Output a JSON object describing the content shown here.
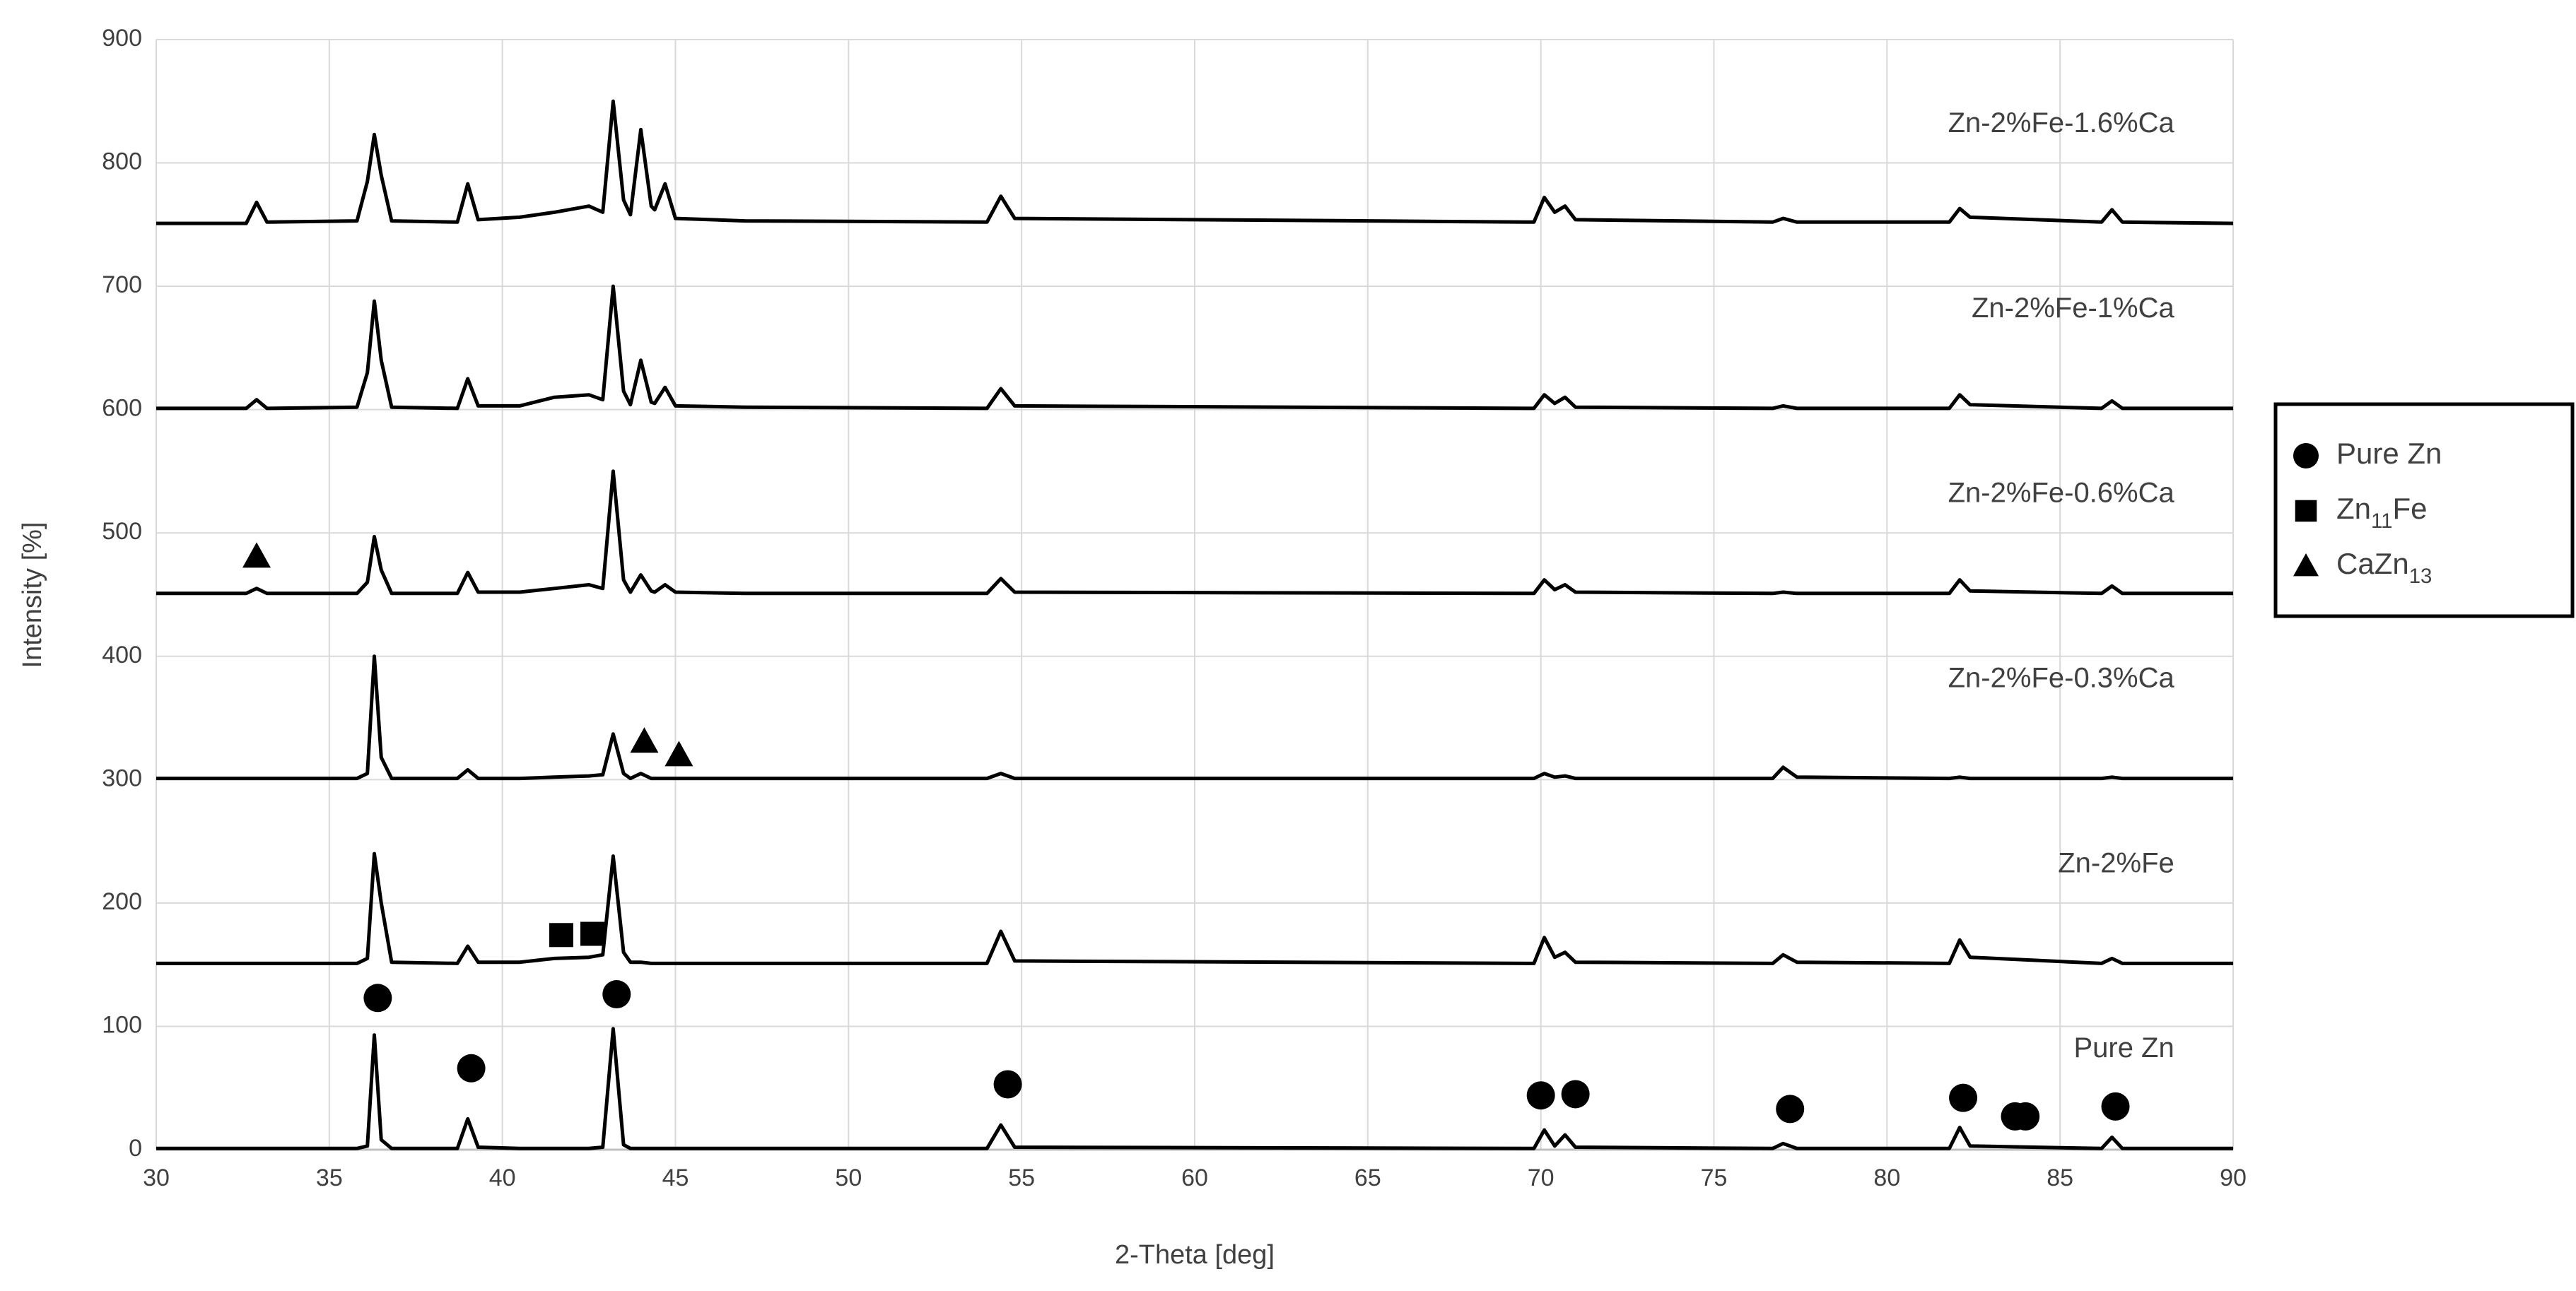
{
  "chart_data": {
    "type": "line",
    "x_label": "2-Theta [deg]",
    "y_label": "Intensity [%]",
    "xlim": [
      30,
      90
    ],
    "xticks": [
      30,
      35,
      40,
      45,
      50,
      55,
      60,
      65,
      70,
      75,
      80,
      85,
      90
    ],
    "ylim": [
      0,
      900
    ],
    "yticks": [
      0,
      100,
      200,
      300,
      400,
      500,
      600,
      700,
      800,
      900
    ],
    "grid": true,
    "x": [
      30,
      32.6,
      32.9,
      33.2,
      35.8,
      36.1,
      36.3,
      36.5,
      36.8,
      38.7,
      39.0,
      39.3,
      40.5,
      41.5,
      42.5,
      42.9,
      43.2,
      43.5,
      43.7,
      44.0,
      44.3,
      44.4,
      44.7,
      45.0,
      47,
      54.0,
      54.4,
      54.8,
      69.8,
      70.1,
      70.4,
      70.7,
      71.0,
      76.7,
      77.0,
      77.4,
      81.8,
      82.1,
      82.4,
      86.2,
      86.5,
      86.8,
      90
    ],
    "series": [
      {
        "name": "Pure Zn",
        "color": "#000000",
        "values": [
          1,
          1,
          1,
          1,
          1,
          3,
          93,
          8,
          1,
          1,
          25,
          2,
          1,
          1,
          1,
          2,
          98,
          4,
          1,
          1,
          1,
          1,
          1,
          1,
          1,
          1,
          20,
          2,
          1,
          16,
          3,
          12,
          2,
          1,
          5,
          1,
          1,
          18,
          3,
          1,
          10,
          1,
          1
        ]
      },
      {
        "name": "Zn-2%Fe",
        "color": "#000000",
        "values": [
          151,
          151,
          151,
          151,
          151,
          155,
          240,
          200,
          152,
          151,
          165,
          152,
          152,
          155,
          156,
          158,
          238,
          160,
          152,
          152,
          151,
          151,
          151,
          151,
          151,
          151,
          177,
          153,
          151,
          172,
          156,
          160,
          152,
          151,
          158,
          152,
          151,
          170,
          156,
          151,
          155,
          151,
          151
        ]
      },
      {
        "name": "Zn-2%Fe-0.3%Ca",
        "color": "#000000",
        "values": [
          301,
          301,
          301,
          301,
          301,
          305,
          400,
          318,
          301,
          301,
          308,
          301,
          301,
          302,
          303,
          304,
          337,
          305,
          301,
          305,
          301,
          301,
          301,
          301,
          301,
          301,
          305,
          301,
          301,
          305,
          302,
          303,
          301,
          301,
          310,
          302,
          301,
          302,
          301,
          301,
          302,
          301,
          301
        ]
      },
      {
        "name": "Zn-2%Fe-0.6%Ca",
        "color": "#000000",
        "values": [
          451,
          451,
          455,
          451,
          451,
          460,
          497,
          470,
          451,
          451,
          468,
          452,
          452,
          455,
          458,
          455,
          550,
          462,
          452,
          466,
          453,
          452,
          458,
          452,
          451,
          451,
          463,
          452,
          451,
          462,
          454,
          458,
          452,
          451,
          452,
          451,
          451,
          462,
          453,
          451,
          457,
          451,
          451
        ]
      },
      {
        "name": "Zn-2%Fe-1%Ca",
        "color": "#000000",
        "values": [
          601,
          601,
          608,
          601,
          602,
          630,
          688,
          640,
          602,
          601,
          625,
          603,
          603,
          610,
          612,
          608,
          700,
          615,
          604,
          640,
          606,
          605,
          618,
          603,
          602,
          601,
          617,
          603,
          601,
          612,
          605,
          610,
          602,
          601,
          603,
          601,
          601,
          612,
          604,
          601,
          607,
          601,
          601
        ]
      },
      {
        "name": "Zn-2%Fe-1.6%Ca",
        "color": "#000000",
        "values": [
          751,
          751,
          768,
          752,
          753,
          785,
          823,
          790,
          753,
          752,
          783,
          754,
          756,
          760,
          765,
          760,
          850,
          770,
          758,
          827,
          765,
          762,
          783,
          755,
          753,
          752,
          773,
          755,
          752,
          772,
          760,
          765,
          754,
          752,
          755,
          752,
          752,
          763,
          756,
          752,
          762,
          752,
          751
        ]
      }
    ],
    "legend": [
      {
        "name": "Pure Zn",
        "shape": "circle",
        "x": [
          36.4,
          39.1,
          43.3,
          54.6,
          70.0,
          71.0,
          77.2,
          82.2,
          83.7,
          84.0,
          86.6
        ],
        "y": [
          123,
          66,
          126,
          53,
          44,
          45,
          33,
          42,
          27,
          27,
          35
        ]
      },
      {
        "name": "Zn11Fe",
        "shape": "square",
        "x": [
          41.7,
          42.6
        ],
        "y": [
          174,
          175
        ]
      },
      {
        "name": "CaZn13",
        "shape": "triangle",
        "x": [
          32.9,
          44.1,
          45.1
        ],
        "y": [
          481,
          331,
          320
        ]
      }
    ]
  }
}
